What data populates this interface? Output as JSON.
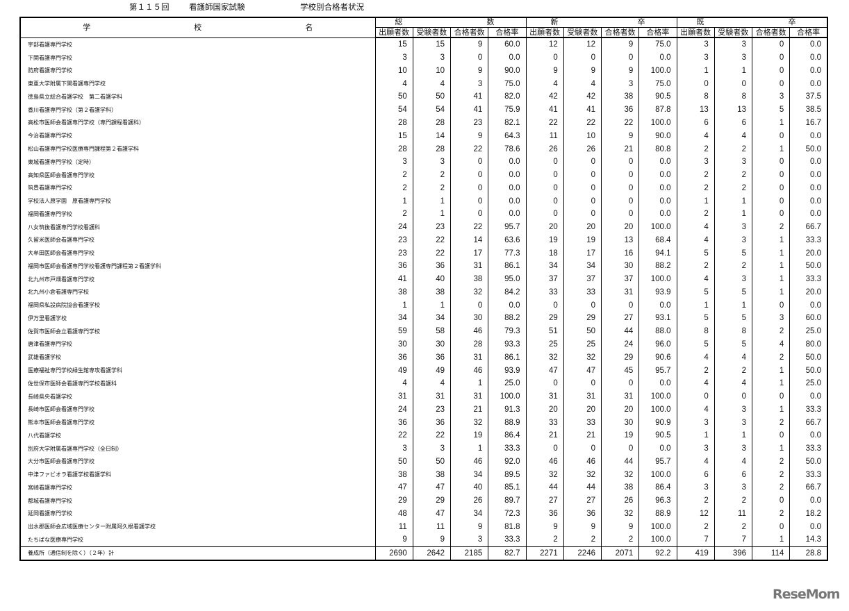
{
  "title": {
    "round": "第１１５回",
    "exam": "看護師国家試験",
    "subject": "学校別合格者状況"
  },
  "header": {
    "name_chars": [
      "学",
      "校",
      "名"
    ],
    "groups": [
      {
        "left": "総",
        "right": "数"
      },
      {
        "left": "新",
        "right": "卒"
      },
      {
        "left": "既",
        "right": "卒"
      }
    ],
    "cols": [
      "出願者数",
      "受験者数",
      "合格者数",
      "合格率"
    ]
  },
  "rows": [
    [
      "宇部看護専門学校",
      "15",
      "15",
      "9",
      "60.0",
      "12",
      "12",
      "9",
      "75.0",
      "3",
      "3",
      "0",
      "0.0"
    ],
    [
      "下関看護専門学校",
      "3",
      "3",
      "0",
      "0.0",
      "0",
      "0",
      "0",
      "0.0",
      "3",
      "3",
      "0",
      "0.0"
    ],
    [
      "防府看護専門学校",
      "10",
      "10",
      "9",
      "90.0",
      "9",
      "9",
      "9",
      "100.0",
      "1",
      "1",
      "0",
      "0.0"
    ],
    [
      "東亜大学附属下関看護専門学校",
      "4",
      "4",
      "3",
      "75.0",
      "4",
      "4",
      "3",
      "75.0",
      "0",
      "0",
      "0",
      "0.0"
    ],
    [
      "徳島県立総合看護学校　第二看護学科",
      "50",
      "50",
      "41",
      "82.0",
      "42",
      "42",
      "38",
      "90.5",
      "8",
      "8",
      "3",
      "37.5"
    ],
    [
      "香川看護専門学校（第２看護学科）",
      "54",
      "54",
      "41",
      "75.9",
      "41",
      "41",
      "36",
      "87.8",
      "13",
      "13",
      "5",
      "38.5"
    ],
    [
      "高松市医師会看護専門学校（専門課程看護科）",
      "28",
      "28",
      "23",
      "82.1",
      "22",
      "22",
      "22",
      "100.0",
      "6",
      "6",
      "1",
      "16.7"
    ],
    [
      "今治看護専門学校",
      "15",
      "14",
      "9",
      "64.3",
      "11",
      "10",
      "9",
      "90.0",
      "4",
      "4",
      "0",
      "0.0"
    ],
    [
      "松山看護専門学校医療専門課程第２看護学科",
      "28",
      "28",
      "22",
      "78.6",
      "26",
      "26",
      "21",
      "80.8",
      "2",
      "2",
      "1",
      "50.0"
    ],
    [
      "東城看護専門学校（定時）",
      "3",
      "3",
      "0",
      "0.0",
      "0",
      "0",
      "0",
      "0.0",
      "3",
      "3",
      "0",
      "0.0"
    ],
    [
      "高知県医師会看護専門学校",
      "2",
      "2",
      "0",
      "0.0",
      "0",
      "0",
      "0",
      "0.0",
      "2",
      "2",
      "0",
      "0.0"
    ],
    [
      "筑豊看護専門学校",
      "2",
      "2",
      "0",
      "0.0",
      "0",
      "0",
      "0",
      "0.0",
      "2",
      "2",
      "0",
      "0.0"
    ],
    [
      "学校法人原学園　原看護専門学校",
      "1",
      "1",
      "0",
      "0.0",
      "0",
      "0",
      "0",
      "0.0",
      "1",
      "1",
      "0",
      "0.0"
    ],
    [
      "福岡看護専門学校",
      "2",
      "1",
      "0",
      "0.0",
      "0",
      "0",
      "0",
      "0.0",
      "2",
      "1",
      "0",
      "0.0"
    ],
    [
      "八女筑後看護専門学校看護科",
      "24",
      "23",
      "22",
      "95.7",
      "20",
      "20",
      "20",
      "100.0",
      "4",
      "3",
      "2",
      "66.7"
    ],
    [
      "久留米医師会看護専門学校",
      "23",
      "22",
      "14",
      "63.6",
      "19",
      "19",
      "13",
      "68.4",
      "4",
      "3",
      "1",
      "33.3"
    ],
    [
      "大牟田医師会看護専門学校",
      "23",
      "22",
      "17",
      "77.3",
      "18",
      "17",
      "16",
      "94.1",
      "5",
      "5",
      "1",
      "20.0"
    ],
    [
      "福岡市医師会看護専門学校看護専門課程第２看護学科",
      "36",
      "36",
      "31",
      "86.1",
      "34",
      "34",
      "30",
      "88.2",
      "2",
      "2",
      "1",
      "50.0"
    ],
    [
      "北九州市戸畑看護専門学校",
      "41",
      "40",
      "38",
      "95.0",
      "37",
      "37",
      "37",
      "100.0",
      "4",
      "3",
      "1",
      "33.3"
    ],
    [
      "北九州小倉看護専門学校",
      "38",
      "38",
      "32",
      "84.2",
      "33",
      "33",
      "31",
      "93.9",
      "5",
      "5",
      "1",
      "20.0"
    ],
    [
      "福岡県私設病院協会看護学校",
      "1",
      "1",
      "0",
      "0.0",
      "0",
      "0",
      "0",
      "0.0",
      "1",
      "1",
      "0",
      "0.0"
    ],
    [
      "伊万里看護学校",
      "34",
      "34",
      "30",
      "88.2",
      "29",
      "29",
      "27",
      "93.1",
      "5",
      "5",
      "3",
      "60.0"
    ],
    [
      "佐賀市医師会立看護専門学校",
      "59",
      "58",
      "46",
      "79.3",
      "51",
      "50",
      "44",
      "88.0",
      "8",
      "8",
      "2",
      "25.0"
    ],
    [
      "唐津看護専門学校",
      "30",
      "30",
      "28",
      "93.3",
      "25",
      "25",
      "24",
      "96.0",
      "5",
      "5",
      "4",
      "80.0"
    ],
    [
      "武雄看護学校",
      "36",
      "36",
      "31",
      "86.1",
      "32",
      "32",
      "29",
      "90.6",
      "4",
      "4",
      "2",
      "50.0"
    ],
    [
      "医療福祉専門学校緑生館専攻看護学科",
      "49",
      "49",
      "46",
      "93.9",
      "47",
      "47",
      "45",
      "95.7",
      "2",
      "2",
      "1",
      "50.0"
    ],
    [
      "佐世保市医師会看護専門学校看護科",
      "4",
      "4",
      "1",
      "25.0",
      "0",
      "0",
      "0",
      "0.0",
      "4",
      "4",
      "1",
      "25.0"
    ],
    [
      "長崎県央看護学校",
      "31",
      "31",
      "31",
      "100.0",
      "31",
      "31",
      "31",
      "100.0",
      "0",
      "0",
      "0",
      "0.0"
    ],
    [
      "長崎市医師会看護専門学校",
      "24",
      "23",
      "21",
      "91.3",
      "20",
      "20",
      "20",
      "100.0",
      "4",
      "3",
      "1",
      "33.3"
    ],
    [
      "熊本市医師会看護専門学校",
      "36",
      "36",
      "32",
      "88.9",
      "33",
      "33",
      "30",
      "90.9",
      "3",
      "3",
      "2",
      "66.7"
    ],
    [
      "八代看護学校",
      "22",
      "22",
      "19",
      "86.4",
      "21",
      "21",
      "19",
      "90.5",
      "1",
      "1",
      "0",
      "0.0"
    ],
    [
      "別府大学附属看護専門学校（全日制）",
      "3",
      "3",
      "1",
      "33.3",
      "0",
      "0",
      "0",
      "0.0",
      "3",
      "3",
      "1",
      "33.3"
    ],
    [
      "大分市医師会看護専門学校",
      "50",
      "50",
      "46",
      "92.0",
      "46",
      "46",
      "44",
      "95.7",
      "4",
      "4",
      "2",
      "50.0"
    ],
    [
      "中津ファビオラ看護学校看護学科",
      "38",
      "38",
      "34",
      "89.5",
      "32",
      "32",
      "32",
      "100.0",
      "6",
      "6",
      "2",
      "33.3"
    ],
    [
      "宮崎看護専門学校",
      "47",
      "47",
      "40",
      "85.1",
      "44",
      "44",
      "38",
      "86.4",
      "3",
      "3",
      "2",
      "66.7"
    ],
    [
      "都城看護専門学校",
      "29",
      "29",
      "26",
      "89.7",
      "27",
      "27",
      "26",
      "96.3",
      "2",
      "2",
      "0",
      "0.0"
    ],
    [
      "延岡看護専門学校",
      "48",
      "47",
      "34",
      "72.3",
      "36",
      "36",
      "32",
      "88.9",
      "12",
      "11",
      "2",
      "18.2"
    ],
    [
      "出水郡医師会広域医療センター附属阿久根看護学校",
      "11",
      "11",
      "9",
      "81.8",
      "9",
      "9",
      "9",
      "100.0",
      "2",
      "2",
      "0",
      "0.0"
    ],
    [
      "たちばな医療専門学校",
      "9",
      "9",
      "3",
      "33.3",
      "2",
      "2",
      "2",
      "100.0",
      "7",
      "7",
      "1",
      "14.3"
    ]
  ],
  "total": [
    "養成所（通信制を除く）（２年）計",
    "2690",
    "2642",
    "2185",
    "82.7",
    "2271",
    "2246",
    "2071",
    "92.2",
    "419",
    "396",
    "114",
    "28.8"
  ],
  "logo": "ReseMom"
}
